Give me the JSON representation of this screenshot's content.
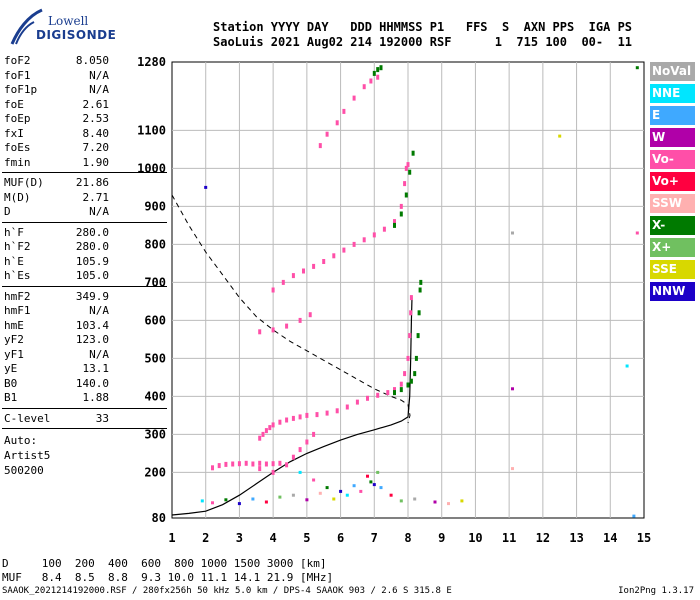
{
  "logo": {
    "line1": "Lowell",
    "line2": "DIGISONDE"
  },
  "header": {
    "row1": "Station YYYY DAY   DDD HHMMSS P1   FFS  S  AXN PPS  IGA PS",
    "row2": "SaoLuis 2021 Aug02 214 192000 RSF      1  715 100  00-  11"
  },
  "params": [
    {
      "label": "foF2",
      "value": "8.050"
    },
    {
      "label": "foF1",
      "value": "N/A"
    },
    {
      "label": "foF1p",
      "value": "N/A"
    },
    {
      "label": "foE",
      "value": "2.61"
    },
    {
      "label": "foEp",
      "value": "2.53"
    },
    {
      "label": "fxI",
      "value": "8.40"
    },
    {
      "label": "foEs",
      "value": "7.20"
    },
    {
      "label": "fmin",
      "value": "1.90"
    },
    {
      "label": "MUF(D)",
      "value": "21.86"
    },
    {
      "label": "M(D)",
      "value": "2.71"
    },
    {
      "label": "D",
      "value": "N/A"
    },
    {
      "label": "h`F",
      "value": "280.0"
    },
    {
      "label": "h`F2",
      "value": "280.0"
    },
    {
      "label": "h`E",
      "value": "105.9"
    },
    {
      "label": "h`Es",
      "value": "105.0"
    },
    {
      "label": "hmF2",
      "value": "349.9"
    },
    {
      "label": "hmF1",
      "value": "N/A"
    },
    {
      "label": "hmE",
      "value": "103.4"
    },
    {
      "label": "yF2",
      "value": "123.0"
    },
    {
      "label": "yF1",
      "value": "N/A"
    },
    {
      "label": "yE",
      "value": "13.1"
    },
    {
      "label": "B0",
      "value": "140.0"
    },
    {
      "label": "B1",
      "value": "1.88"
    },
    {
      "label": "C-level",
      "value": "33"
    }
  ],
  "auto": {
    "line1": "Auto:",
    "line2": "Artist5",
    "line3": "500200"
  },
  "legend": [
    {
      "label": "NoVal",
      "color": "#a9a9a9"
    },
    {
      "label": "NNE",
      "color": "#00e6ff"
    },
    {
      "label": "E",
      "color": "#3fa9ff"
    },
    {
      "label": "W",
      "color": "#b000a8"
    },
    {
      "label": "Vo-",
      "color": "#ff4fa8"
    },
    {
      "label": "Vo+",
      "color": "#ff0040"
    },
    {
      "label": "SSW",
      "color": "#ffb0b0"
    },
    {
      "label": "X-",
      "color": "#007a00"
    },
    {
      "label": "X+",
      "color": "#70c060"
    },
    {
      "label": "SSE",
      "color": "#d8d800"
    },
    {
      "label": "NNW",
      "color": "#1c00c8"
    }
  ],
  "footer": {
    "d_row": "D     100  200  400  600  800 1000 1500 3000 [km]",
    "muf_row": "MUF   8.4  8.5  8.8  9.3 10.0 11.1 14.1 21.9 [MHz]",
    "file_line": "SAAOK_2021214192000.RSF / 280fx256h 50 kHz 5.0 km / DPS-4 SAAOK 903 / 2.6 S 315.8 E",
    "version": "Ion2Png 1.3.17"
  },
  "chart_data": {
    "type": "scatter",
    "title": "",
    "xlabel": "",
    "ylabel": "",
    "xlim": [
      1,
      15
    ],
    "ylim": [
      80,
      1280
    ],
    "x_ticks": [
      1,
      2,
      3,
      4,
      5,
      6,
      7,
      8,
      9,
      10,
      11,
      12,
      13,
      14,
      15
    ],
    "y_ticks": [
      80,
      200,
      300,
      400,
      500,
      600,
      700,
      800,
      900,
      1000,
      1100,
      1280
    ],
    "grid": true,
    "legend_placement": "right",
    "colors": {
      "trace_o": "#ff4fa8",
      "trace_x": "#007a00",
      "profile": "#000000",
      "dashed": "#000000",
      "grid": "#bbbbbb"
    },
    "series": [
      {
        "mode": "o",
        "points": [
          [
            3.6,
            290
          ],
          [
            3.7,
            300
          ],
          [
            3.8,
            310
          ],
          [
            3.9,
            318
          ],
          [
            4.0,
            325
          ],
          [
            4.2,
            332
          ],
          [
            4.4,
            338
          ],
          [
            4.6,
            342
          ],
          [
            4.8,
            346
          ],
          [
            5.0,
            350
          ],
          [
            5.3,
            352
          ],
          [
            5.6,
            356
          ],
          [
            5.9,
            362
          ],
          [
            6.2,
            372
          ],
          [
            6.5,
            385
          ],
          [
            6.8,
            395
          ],
          [
            7.1,
            403
          ],
          [
            7.4,
            410
          ],
          [
            7.6,
            418
          ],
          [
            7.8,
            432
          ],
          [
            7.9,
            460
          ],
          [
            8.0,
            500
          ],
          [
            8.05,
            560
          ],
          [
            8.08,
            620
          ],
          [
            8.1,
            660
          ]
        ]
      },
      {
        "mode": "x",
        "points": [
          [
            7.6,
            410
          ],
          [
            7.8,
            418
          ],
          [
            8.0,
            430
          ],
          [
            8.1,
            440
          ],
          [
            8.2,
            460
          ],
          [
            8.25,
            500
          ],
          [
            8.3,
            560
          ],
          [
            8.33,
            620
          ],
          [
            8.36,
            680
          ],
          [
            8.38,
            700
          ]
        ]
      },
      {
        "mode": "o",
        "points": [
          [
            4.0,
            680
          ],
          [
            4.3,
            700
          ],
          [
            4.6,
            718
          ],
          [
            4.9,
            730
          ],
          [
            5.2,
            742
          ],
          [
            5.5,
            755
          ],
          [
            5.8,
            770
          ],
          [
            6.1,
            785
          ],
          [
            6.4,
            800
          ],
          [
            6.7,
            812
          ],
          [
            7.0,
            825
          ],
          [
            7.3,
            840
          ],
          [
            7.6,
            860
          ],
          [
            7.8,
            900
          ],
          [
            7.9,
            960
          ],
          [
            7.95,
            1000
          ],
          [
            8.0,
            1010
          ]
        ]
      },
      {
        "mode": "x",
        "points": [
          [
            7.6,
            850
          ],
          [
            7.8,
            880
          ],
          [
            7.95,
            930
          ],
          [
            8.05,
            990
          ],
          [
            8.15,
            1040
          ]
        ]
      },
      {
        "mode": "o",
        "points": [
          [
            5.4,
            1060
          ],
          [
            5.6,
            1090
          ],
          [
            5.9,
            1120
          ],
          [
            6.1,
            1150
          ],
          [
            6.4,
            1185
          ],
          [
            6.7,
            1215
          ],
          [
            6.9,
            1230
          ],
          [
            7.1,
            1240
          ]
        ]
      },
      {
        "mode": "x",
        "points": [
          [
            7.0,
            1250
          ],
          [
            7.1,
            1260
          ],
          [
            7.2,
            1265
          ]
        ]
      },
      {
        "mode": "o",
        "points": [
          [
            2.2,
            212
          ],
          [
            2.4,
            218
          ],
          [
            2.6,
            221
          ],
          [
            2.8,
            222
          ],
          [
            3.0,
            223
          ],
          [
            3.2,
            224
          ],
          [
            3.4,
            222
          ],
          [
            3.6,
            224
          ],
          [
            3.8,
            222
          ],
          [
            4.0,
            223
          ],
          [
            4.2,
            224
          ]
        ]
      },
      {
        "mode": "o",
        "points": [
          [
            3.6,
            210
          ],
          [
            4.0,
            200
          ],
          [
            4.4,
            220
          ],
          [
            4.6,
            240
          ],
          [
            4.8,
            260
          ],
          [
            5.0,
            280
          ],
          [
            5.2,
            300
          ]
        ]
      },
      {
        "mode": "o",
        "points": [
          [
            3.6,
            570
          ],
          [
            4.0,
            575
          ],
          [
            4.4,
            585
          ],
          [
            4.8,
            600
          ],
          [
            5.1,
            615
          ]
        ]
      },
      {
        "mode": "noise",
        "points": [
          [
            1.9,
            125
          ],
          [
            2.2,
            120
          ],
          [
            2.6,
            128
          ],
          [
            3.0,
            118
          ],
          [
            3.4,
            130
          ],
          [
            3.8,
            122
          ],
          [
            4.2,
            135
          ],
          [
            4.6,
            140
          ],
          [
            5.0,
            128
          ],
          [
            5.4,
            145
          ],
          [
            5.8,
            130
          ],
          [
            6.2,
            140
          ],
          [
            6.6,
            150
          ],
          [
            6.9,
            175
          ],
          [
            7.0,
            168
          ],
          [
            7.2,
            160
          ],
          [
            7.5,
            140
          ],
          [
            7.8,
            125
          ],
          [
            8.2,
            130
          ],
          [
            8.8,
            122
          ],
          [
            9.2,
            118
          ],
          [
            9.6,
            125
          ],
          [
            4.8,
            200
          ],
          [
            5.2,
            180
          ],
          [
            5.6,
            160
          ],
          [
            6.0,
            150
          ],
          [
            6.4,
            165
          ],
          [
            6.8,
            190
          ],
          [
            7.1,
            200
          ],
          [
            11.1,
            830
          ],
          [
            11.1,
            420
          ],
          [
            11.1,
            210
          ],
          [
            12.5,
            1085
          ],
          [
            14.5,
            480
          ],
          [
            14.8,
            830
          ],
          [
            14.8,
            1265
          ],
          [
            2.0,
            950
          ],
          [
            14.7,
            85
          ]
        ]
      }
    ],
    "dashed_curve": [
      [
        1.0,
        930
      ],
      [
        1.5,
        850
      ],
      [
        2.0,
        780
      ],
      [
        2.5,
        720
      ],
      [
        3.0,
        660
      ],
      [
        3.5,
        610
      ],
      [
        4.0,
        575
      ],
      [
        4.5,
        545
      ],
      [
        5.0,
        520
      ],
      [
        5.5,
        495
      ],
      [
        6.0,
        470
      ],
      [
        6.5,
        445
      ],
      [
        7.0,
        420
      ],
      [
        7.5,
        400
      ],
      [
        7.8,
        390
      ],
      [
        8.0,
        378
      ],
      [
        8.06,
        350
      ],
      [
        8.0,
        330
      ]
    ],
    "profile_curve": [
      [
        1.0,
        88
      ],
      [
        1.5,
        92
      ],
      [
        2.0,
        98
      ],
      [
        2.5,
        115
      ],
      [
        3.0,
        140
      ],
      [
        3.5,
        170
      ],
      [
        4.0,
        200
      ],
      [
        4.5,
        228
      ],
      [
        5.0,
        250
      ],
      [
        5.5,
        268
      ],
      [
        6.0,
        285
      ],
      [
        6.5,
        300
      ],
      [
        7.0,
        312
      ],
      [
        7.5,
        325
      ],
      [
        7.8,
        335
      ],
      [
        8.0,
        346
      ],
      [
        8.05,
        400
      ],
      [
        8.08,
        500
      ],
      [
        8.1,
        600
      ],
      [
        8.12,
        660
      ]
    ]
  }
}
